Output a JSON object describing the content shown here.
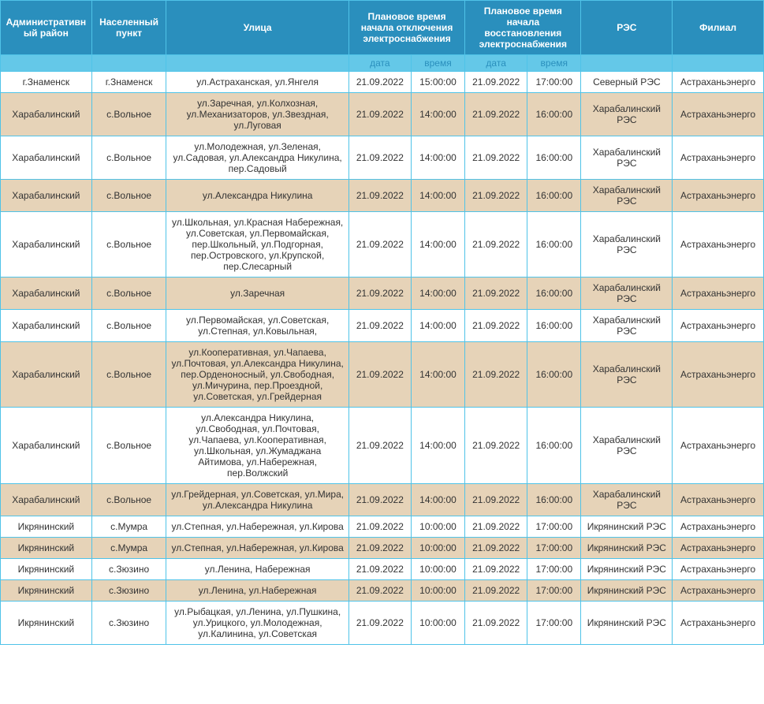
{
  "colors": {
    "header_bg": "#2a8fbd",
    "subheader_bg": "#64c8e8",
    "subheader_text": "#2a8fbd",
    "border": "#4fc3e8",
    "row_white": "#ffffff",
    "row_alt": "#e6d3b8",
    "header_text": "#ffffff",
    "cell_text": "#333333"
  },
  "fonts": {
    "header_size": 12,
    "cell_size": 12
  },
  "columns": {
    "widths": [
      110,
      90,
      220,
      75,
      65,
      75,
      65,
      110,
      110
    ],
    "headers": [
      {
        "label": "Административный район",
        "colspan": 1,
        "rowspan": 1
      },
      {
        "label": "Населенный пункт",
        "colspan": 1,
        "rowspan": 1
      },
      {
        "label": "Улица",
        "colspan": 1,
        "rowspan": 1
      },
      {
        "label": "Плановое время начала отключения электроснабжения",
        "colspan": 2,
        "rowspan": 1
      },
      {
        "label": "Плановое время начала восстановления электроснабжения",
        "colspan": 2,
        "rowspan": 1
      },
      {
        "label": "РЭС",
        "colspan": 1,
        "rowspan": 1
      },
      {
        "label": "Филиал",
        "colspan": 1,
        "rowspan": 1
      }
    ],
    "subheaders": [
      "",
      "",
      "",
      "дата",
      "время",
      "дата",
      "время",
      "",
      ""
    ]
  },
  "rows": [
    {
      "alt": false,
      "cells": [
        "г.Знаменск",
        "г.Знаменск",
        "ул.Астраханская, ул.Янгеля",
        "21.09.2022",
        "15:00:00",
        "21.09.2022",
        "17:00:00",
        "Северный РЭС",
        "Астраханьэнерго"
      ]
    },
    {
      "alt": true,
      "cells": [
        "Харабалинский",
        "с.Вольное",
        "ул.Заречная, ул.Колхозная, ул.Механизаторов, ул.Звездная, ул.Луговая",
        "21.09.2022",
        "14:00:00",
        "21.09.2022",
        "16:00:00",
        "Харабалинский РЭС",
        "Астраханьэнерго"
      ]
    },
    {
      "alt": false,
      "cells": [
        "Харабалинский",
        "с.Вольное",
        "ул.Молодежная, ул.Зеленая, ул.Садовая, ул.Александра Никулина, пер.Садовый",
        "21.09.2022",
        "14:00:00",
        "21.09.2022",
        "16:00:00",
        "Харабалинский РЭС",
        "Астраханьэнерго"
      ]
    },
    {
      "alt": true,
      "cells": [
        "Харабалинский",
        "с.Вольное",
        "ул.Александра Никулина",
        "21.09.2022",
        "14:00:00",
        "21.09.2022",
        "16:00:00",
        "Харабалинский РЭС",
        "Астраханьэнерго"
      ]
    },
    {
      "alt": false,
      "cells": [
        "Харабалинский",
        "с.Вольное",
        "ул.Школьная, ул.Красная Набережная, ул.Советская, ул.Первомайская, пер.Школьный, ул.Подгорная, пер.Островского, ул.Крупской, пер.Слесарный",
        "21.09.2022",
        "14:00:00",
        "21.09.2022",
        "16:00:00",
        "Харабалинский РЭС",
        "Астраханьэнерго"
      ]
    },
    {
      "alt": true,
      "cells": [
        "Харабалинский",
        "с.Вольное",
        "ул.Заречная",
        "21.09.2022",
        "14:00:00",
        "21.09.2022",
        "16:00:00",
        "Харабалинский РЭС",
        "Астраханьэнерго"
      ]
    },
    {
      "alt": false,
      "cells": [
        "Харабалинский",
        "с.Вольное",
        "ул.Первомайская, ул.Советская, ул.Степная, ул.Ковыльная,",
        "21.09.2022",
        "14:00:00",
        "21.09.2022",
        "16:00:00",
        "Харабалинский РЭС",
        "Астраханьэнерго"
      ]
    },
    {
      "alt": true,
      "cells": [
        "Харабалинский",
        "с.Вольное",
        "ул.Кооперативная, ул.Чапаева, ул.Почтовая, ул.Александра Никулина, пер.Орденоносный, ул.Свободная, ул.Мичурина, пер.Проездной, ул.Советская, ул.Грейдерная",
        "21.09.2022",
        "14:00:00",
        "21.09.2022",
        "16:00:00",
        "Харабалинский РЭС",
        "Астраханьэнерго"
      ]
    },
    {
      "alt": false,
      "cells": [
        "Харабалинский",
        "с.Вольное",
        "ул.Александра Никулина, ул.Свободная, ул.Почтовая, ул.Чапаева, ул.Кооперативная, ул.Школьная, ул.Жумаджана Айтимова, ул.Набережная, пер.Волжский",
        "21.09.2022",
        "14:00:00",
        "21.09.2022",
        "16:00:00",
        "Харабалинский РЭС",
        "Астраханьэнерго"
      ]
    },
    {
      "alt": true,
      "cells": [
        "Харабалинский",
        "с.Вольное",
        "ул.Грейдерная, ул.Советская, ул.Мира, ул.Александра Никулина",
        "21.09.2022",
        "14:00:00",
        "21.09.2022",
        "16:00:00",
        "Харабалинский РЭС",
        "Астраханьэнерго"
      ]
    },
    {
      "alt": false,
      "cells": [
        "Икрянинский",
        "с.Мумра",
        "ул.Степная, ул.Набережная, ул.Кирова",
        "21.09.2022",
        "10:00:00",
        "21.09.2022",
        "17:00:00",
        "Икрянинский РЭС",
        "Астраханьэнерго"
      ]
    },
    {
      "alt": true,
      "cells": [
        "Икрянинский",
        "с.Мумра",
        "ул.Степная, ул.Набережная, ул.Кирова",
        "21.09.2022",
        "10:00:00",
        "21.09.2022",
        "17:00:00",
        "Икрянинский РЭС",
        "Астраханьэнерго"
      ]
    },
    {
      "alt": false,
      "cells": [
        "Икрянинский",
        "с.Зюзино",
        "ул.Ленина, Набережная",
        "21.09.2022",
        "10:00:00",
        "21.09.2022",
        "17:00:00",
        "Икрянинский РЭС",
        "Астраханьэнерго"
      ]
    },
    {
      "alt": true,
      "cells": [
        "Икрянинский",
        "с.Зюзино",
        "ул.Ленина, ул.Набережная",
        "21.09.2022",
        "10:00:00",
        "21.09.2022",
        "17:00:00",
        "Икрянинский РЭС",
        "Астраханьэнерго"
      ]
    },
    {
      "alt": false,
      "cells": [
        "Икрянинский",
        "с.Зюзино",
        "ул.Рыбацкая, ул.Ленина, ул.Пушкина, ул.Урицкого, ул.Молодежная, ул.Калинина, ул.Советская",
        "21.09.2022",
        "10:00:00",
        "21.09.2022",
        "17:00:00",
        "Икрянинский РЭС",
        "Астраханьэнерго"
      ]
    }
  ]
}
